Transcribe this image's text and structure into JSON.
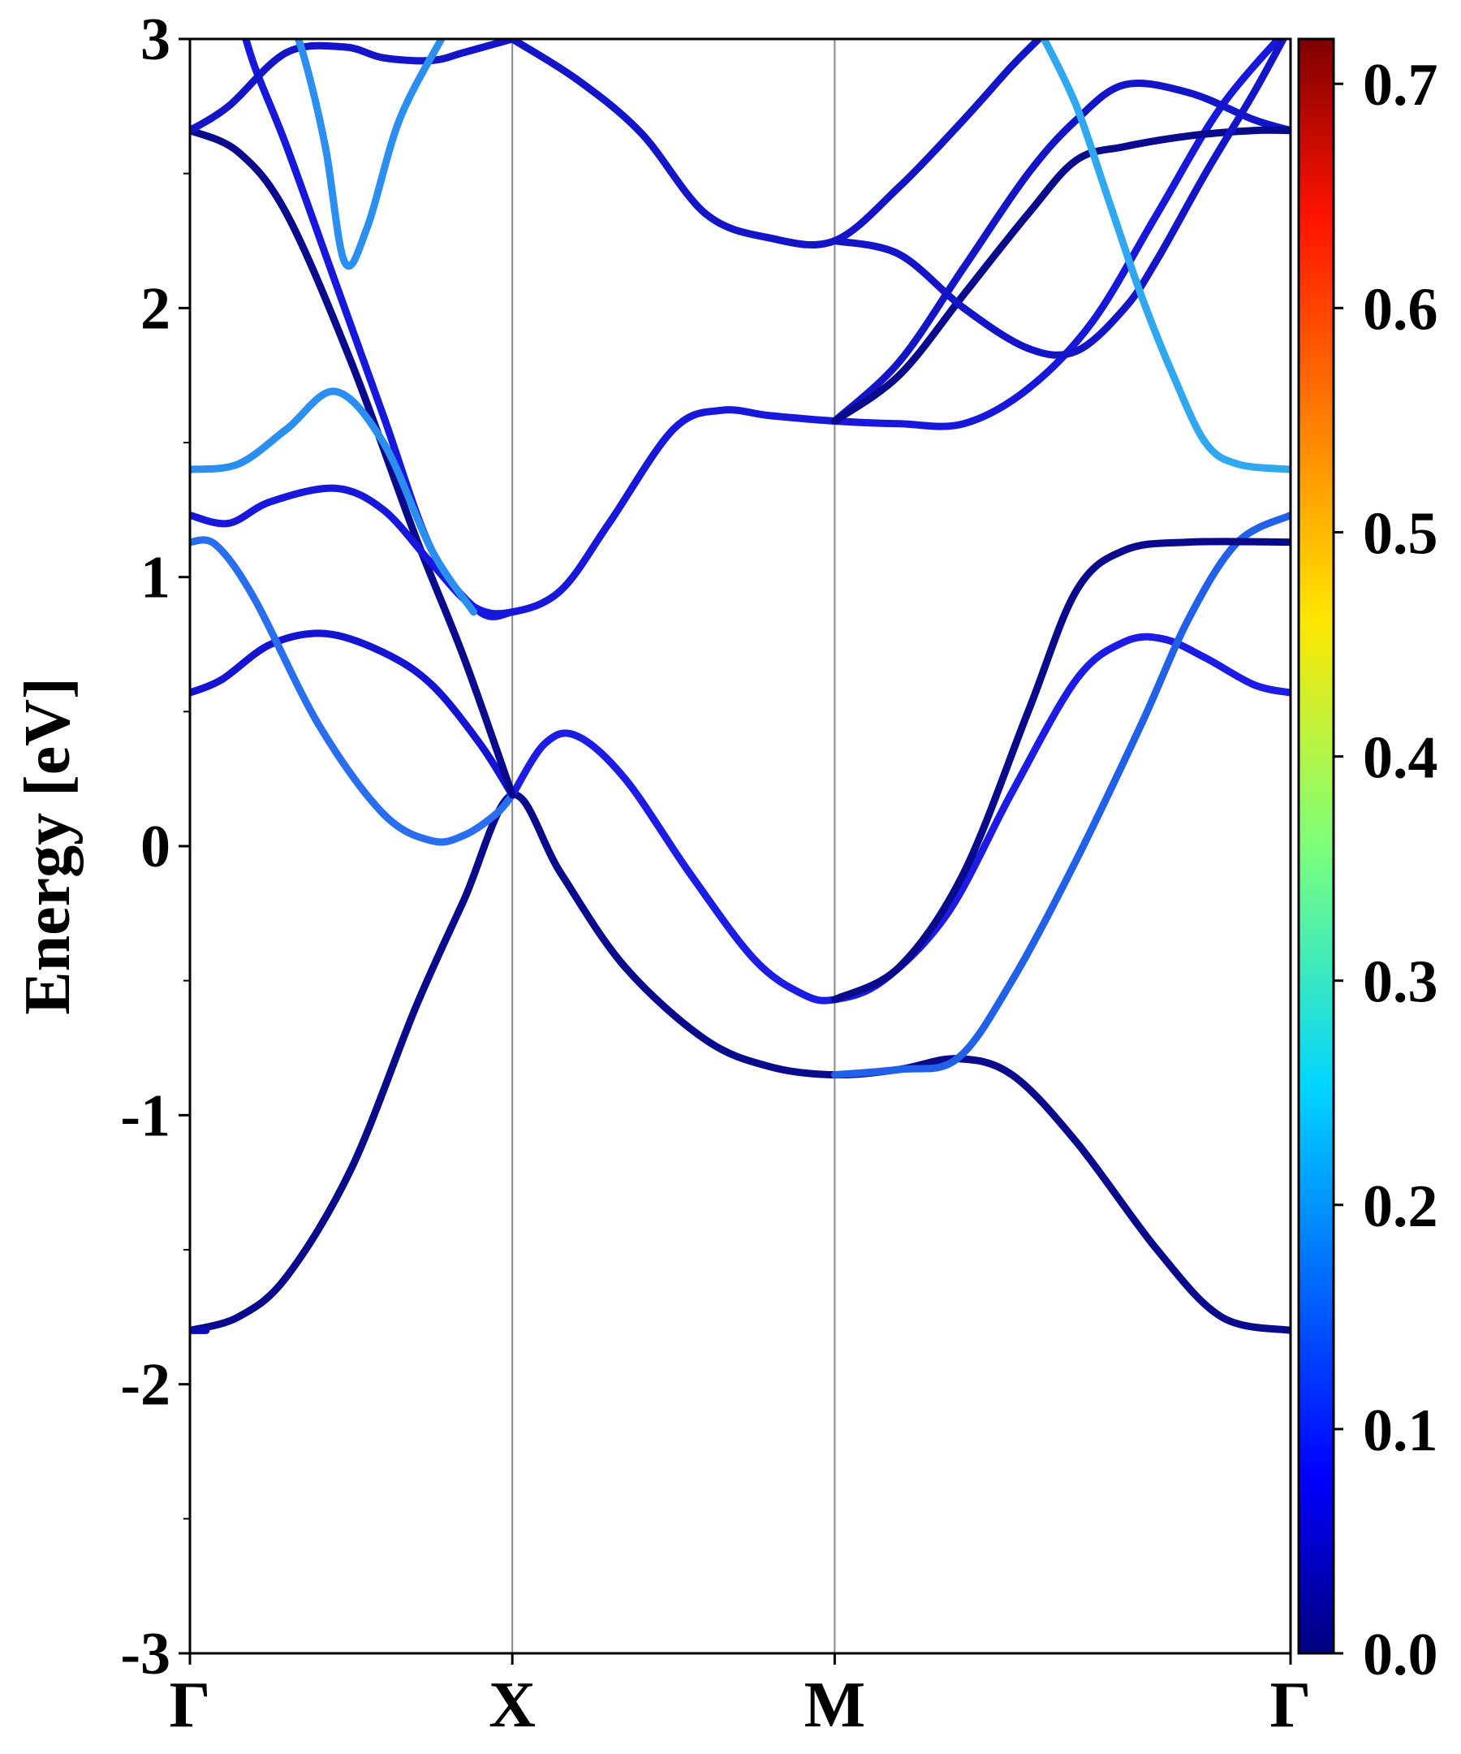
{
  "chart_data": {
    "type": "line",
    "title": "",
    "ylabel": "Energy [eV]",
    "xlabel": "",
    "ylim": [
      -3,
      3
    ],
    "xlim": [
      0,
      3.414
    ],
    "yticks": [
      {
        "value": 3,
        "label": "3"
      },
      {
        "value": 2,
        "label": "2"
      },
      {
        "value": 1,
        "label": "1"
      },
      {
        "value": 0,
        "label": "0"
      },
      {
        "value": -1,
        "label": "-1"
      },
      {
        "value": -2,
        "label": "-2"
      },
      {
        "value": -3,
        "label": "-3"
      }
    ],
    "kpoints": [
      {
        "label": "Γ",
        "x": 0
      },
      {
        "label": "X",
        "x": 1.0
      },
      {
        "label": "M",
        "x": 2.0
      },
      {
        "label": "Γ",
        "x": 3.414
      }
    ],
    "colorbar": {
      "colormap": "jet",
      "range": [
        0.0,
        0.72
      ],
      "ticks": [
        "0.0",
        "0.1",
        "0.2",
        "0.3",
        "0.4",
        "0.5",
        "0.6",
        "0.7"
      ]
    },
    "series": [
      {
        "color": "#0a0a8c",
        "points": [
          [
            0,
            -1.8
          ],
          [
            0.15,
            -1.75
          ],
          [
            0.3,
            -1.6
          ],
          [
            0.5,
            -1.2
          ],
          [
            0.7,
            -0.6
          ],
          [
            0.85,
            -0.2
          ],
          [
            1.0,
            0.19
          ],
          [
            1.15,
            -0.1
          ],
          [
            1.35,
            -0.45
          ],
          [
            1.6,
            -0.72
          ],
          [
            1.8,
            -0.82
          ],
          [
            2.0,
            -0.85
          ],
          [
            2.2,
            -0.83
          ],
          [
            2.38,
            -0.79
          ],
          [
            2.55,
            -0.85
          ],
          [
            2.75,
            -1.1
          ],
          [
            3.0,
            -1.5
          ],
          [
            3.2,
            -1.75
          ],
          [
            3.414,
            -1.8
          ]
        ]
      },
      {
        "color": "#0c0cb4",
        "points": [
          [
            0,
            -1.8
          ],
          [
            0.05,
            -1.8
          ]
        ]
      },
      {
        "color": "#1c1ce6",
        "points": [
          [
            1.0,
            0.19
          ],
          [
            1.1,
            0.38
          ],
          [
            1.2,
            0.41
          ],
          [
            1.35,
            0.25
          ],
          [
            1.55,
            -0.1
          ],
          [
            1.75,
            -0.42
          ],
          [
            1.9,
            -0.55
          ],
          [
            2.0,
            -0.57
          ],
          [
            2.15,
            -0.5
          ],
          [
            2.35,
            -0.25
          ],
          [
            2.55,
            0.2
          ],
          [
            2.75,
            0.62
          ],
          [
            2.9,
            0.76
          ],
          [
            3.02,
            0.77
          ],
          [
            3.15,
            0.7
          ],
          [
            3.3,
            0.6
          ],
          [
            3.414,
            0.57
          ]
        ]
      },
      {
        "color": "#1414d2",
        "points": [
          [
            0,
            0.57
          ],
          [
            0.1,
            0.62
          ],
          [
            0.25,
            0.75
          ],
          [
            0.42,
            0.79
          ],
          [
            0.6,
            0.72
          ],
          [
            0.75,
            0.6
          ],
          [
            0.9,
            0.38
          ],
          [
            1.0,
            0.19
          ]
        ]
      },
      {
        "color": "#2a6ef0",
        "points": [
          [
            0,
            1.13
          ],
          [
            0.08,
            1.12
          ],
          [
            0.2,
            0.92
          ],
          [
            0.4,
            0.45
          ],
          [
            0.6,
            0.12
          ],
          [
            0.75,
            0.02
          ],
          [
            0.85,
            0.04
          ],
          [
            0.95,
            0.12
          ],
          [
            1.0,
            0.19
          ]
        ]
      },
      {
        "color": "#2160e8",
        "points": [
          [
            2.0,
            -0.85
          ],
          [
            2.2,
            -0.83
          ],
          [
            2.38,
            -0.79
          ],
          [
            2.55,
            -0.5
          ],
          [
            2.75,
            -0.05
          ],
          [
            2.95,
            0.45
          ],
          [
            3.1,
            0.85
          ],
          [
            3.25,
            1.13
          ],
          [
            3.414,
            1.23
          ]
        ]
      },
      {
        "color": "#0a0a8c",
        "points": [
          [
            2.0,
            -0.57
          ],
          [
            2.2,
            -0.45
          ],
          [
            2.4,
            -0.1
          ],
          [
            2.6,
            0.5
          ],
          [
            2.75,
            0.95
          ],
          [
            2.9,
            1.1
          ],
          [
            3.1,
            1.13
          ],
          [
            3.414,
            1.13
          ]
        ]
      },
      {
        "color": "#0a0a8c",
        "points": [
          [
            0,
            2.66
          ],
          [
            0.15,
            2.58
          ],
          [
            0.3,
            2.35
          ],
          [
            0.5,
            1.8
          ],
          [
            0.7,
            1.15
          ],
          [
            0.85,
            0.7
          ],
          [
            1.0,
            0.19
          ]
        ]
      },
      {
        "color": "#1818dc",
        "points": [
          [
            0.15,
            3.1
          ],
          [
            0.2,
            2.9
          ],
          [
            0.3,
            2.6
          ],
          [
            0.45,
            2.1
          ],
          [
            0.6,
            1.6
          ],
          [
            0.75,
            1.1
          ],
          [
            0.9,
            0.87
          ],
          [
            1.0,
            0.87
          ]
        ]
      },
      {
        "color": "#1818dc",
        "points": [
          [
            0,
            1.23
          ],
          [
            0.12,
            1.2
          ],
          [
            0.25,
            1.28
          ],
          [
            0.45,
            1.33
          ],
          [
            0.6,
            1.25
          ],
          [
            0.75,
            1.05
          ],
          [
            0.88,
            0.89
          ],
          [
            1.0,
            0.87
          ],
          [
            1.15,
            0.95
          ],
          [
            1.3,
            1.2
          ],
          [
            1.5,
            1.55
          ],
          [
            1.65,
            1.62
          ],
          [
            1.8,
            1.6
          ],
          [
            2.0,
            1.58
          ],
          [
            2.2,
            1.57
          ],
          [
            2.4,
            1.57
          ],
          [
            2.6,
            1.7
          ],
          [
            2.8,
            1.95
          ],
          [
            3.0,
            2.35
          ],
          [
            3.2,
            2.75
          ],
          [
            3.414,
            3.05
          ]
        ]
      },
      {
        "color": "#2a8ff0",
        "points": [
          [
            0,
            1.4
          ],
          [
            0.15,
            1.42
          ],
          [
            0.3,
            1.55
          ],
          [
            0.45,
            1.69
          ],
          [
            0.6,
            1.5
          ],
          [
            0.75,
            1.1
          ],
          [
            0.88,
            0.87
          ]
        ]
      },
      {
        "color": "#1414c8",
        "points": [
          [
            2.0,
            1.58
          ],
          [
            2.2,
            1.8
          ],
          [
            2.4,
            2.15
          ],
          [
            2.6,
            2.5
          ],
          [
            2.75,
            2.7
          ],
          [
            2.9,
            2.83
          ],
          [
            3.1,
            2.8
          ],
          [
            3.3,
            2.7
          ],
          [
            3.414,
            2.66
          ]
        ]
      },
      {
        "color": "#0a0a8c",
        "points": [
          [
            2.0,
            1.58
          ],
          [
            2.2,
            1.75
          ],
          [
            2.4,
            2.05
          ],
          [
            2.6,
            2.35
          ],
          [
            2.75,
            2.55
          ],
          [
            2.9,
            2.6
          ],
          [
            3.1,
            2.64
          ],
          [
            3.3,
            2.66
          ],
          [
            3.414,
            2.66
          ]
        ]
      },
      {
        "color": "#1414c8",
        "points": [
          [
            2.0,
            2.25
          ],
          [
            2.2,
            2.2
          ],
          [
            2.4,
            2.0
          ],
          [
            2.6,
            1.85
          ],
          [
            2.75,
            1.84
          ],
          [
            2.9,
            2.0
          ],
          [
            3.0,
            2.18
          ],
          [
            3.15,
            2.5
          ],
          [
            3.3,
            2.8
          ],
          [
            3.414,
            3.05
          ]
        ]
      },
      {
        "color": "#1414c8",
        "points": [
          [
            1.0,
            3.0
          ],
          [
            1.2,
            2.85
          ],
          [
            1.4,
            2.65
          ],
          [
            1.6,
            2.35
          ],
          [
            1.8,
            2.26
          ],
          [
            2.0,
            2.25
          ],
          [
            2.2,
            2.45
          ],
          [
            2.4,
            2.7
          ],
          [
            2.55,
            2.9
          ],
          [
            2.65,
            3.02
          ]
        ]
      },
      {
        "color": "#2fa8f0",
        "points": [
          [
            2.65,
            3.0
          ],
          [
            2.75,
            2.75
          ],
          [
            2.85,
            2.4
          ],
          [
            2.95,
            2.05
          ],
          [
            3.05,
            1.75
          ],
          [
            3.15,
            1.5
          ],
          [
            3.25,
            1.42
          ],
          [
            3.414,
            1.4
          ]
        ]
      },
      {
        "color": "#1414c8",
        "points": [
          [
            0,
            2.66
          ],
          [
            0.12,
            2.75
          ],
          [
            0.3,
            2.95
          ],
          [
            0.48,
            2.97
          ],
          [
            0.6,
            2.93
          ],
          [
            0.75,
            2.92
          ],
          [
            0.85,
            2.95
          ],
          [
            1.0,
            3.0
          ]
        ]
      },
      {
        "color": "#2a8ff0",
        "points": [
          [
            0.3,
            3.1
          ],
          [
            0.35,
            2.95
          ],
          [
            0.42,
            2.6
          ],
          [
            0.48,
            2.17
          ],
          [
            0.55,
            2.3
          ],
          [
            0.65,
            2.7
          ],
          [
            0.78,
            3.0
          ]
        ]
      }
    ]
  }
}
